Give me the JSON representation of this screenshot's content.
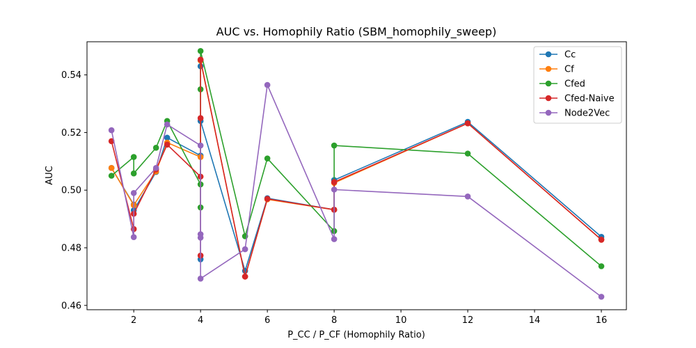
{
  "chart_data": {
    "type": "line",
    "title": "AUC vs. Homophily Ratio (SBM_homophily_sweep)",
    "xlabel": "P_CC / P_CF (Homophily Ratio)",
    "ylabel": "AUC",
    "xlim": [
      0.6,
      16.75
    ],
    "ylim": [
      0.4585,
      0.5515
    ],
    "xticks": [
      2,
      4,
      6,
      8,
      10,
      12,
      14,
      16
    ],
    "yticks": [
      0.46,
      0.48,
      0.5,
      0.52,
      0.54
    ],
    "ytick_labels": [
      "0.46",
      "0.48",
      "0.50",
      "0.52",
      "0.54"
    ],
    "grid": false,
    "legend_position": "top-right",
    "series": [
      {
        "name": "Cc",
        "color": "#1f77b4",
        "points": [
          [
            1.333,
            0.5077
          ],
          [
            2,
            0.495
          ],
          [
            2,
            0.493
          ],
          [
            2.667,
            0.5063
          ],
          [
            3,
            0.5182
          ],
          [
            4,
            0.512
          ],
          [
            4,
            0.476
          ],
          [
            4,
            0.543
          ],
          [
            4,
            0.545
          ],
          [
            4,
            0.524
          ],
          [
            5.333,
            0.472
          ],
          [
            6,
            0.4972
          ],
          [
            8,
            0.4932
          ],
          [
            8,
            0.5035
          ],
          [
            12,
            0.5237
          ],
          [
            16,
            0.4838
          ]
        ]
      },
      {
        "name": "Cf",
        "color": "#ff7f0e",
        "points": [
          [
            1.333,
            0.5077
          ],
          [
            2,
            0.4948
          ],
          [
            2.667,
            0.5065
          ],
          [
            3,
            0.5165
          ],
          [
            4,
            0.5115
          ],
          [
            4,
            0.545
          ],
          [
            5.333,
            0.47
          ],
          [
            6,
            0.4968
          ],
          [
            8,
            0.4932
          ],
          [
            8,
            0.5025
          ],
          [
            12,
            0.5232
          ],
          [
            16,
            0.4828
          ]
        ]
      },
      {
        "name": "Cfed",
        "color": "#2ca02c",
        "points": [
          [
            1.333,
            0.505
          ],
          [
            2,
            0.5115
          ],
          [
            2,
            0.5058
          ],
          [
            2.667,
            0.5147
          ],
          [
            3,
            0.524
          ],
          [
            4,
            0.502
          ],
          [
            4,
            0.494
          ],
          [
            4,
            0.535
          ],
          [
            4,
            0.5483
          ],
          [
            5.333,
            0.484
          ],
          [
            6,
            0.511
          ],
          [
            8,
            0.4858
          ],
          [
            8,
            0.5155
          ],
          [
            12,
            0.5127
          ],
          [
            16,
            0.4736
          ]
        ]
      },
      {
        "name": "Cfed-Naive",
        "color": "#d62728",
        "points": [
          [
            1.333,
            0.517
          ],
          [
            2,
            0.4865
          ],
          [
            2,
            0.4918
          ],
          [
            2.667,
            0.5072
          ],
          [
            3,
            0.5158
          ],
          [
            4,
            0.5047
          ],
          [
            4,
            0.4773
          ],
          [
            4,
            0.525
          ],
          [
            4,
            0.5453
          ],
          [
            5.333,
            0.47
          ],
          [
            6,
            0.497
          ],
          [
            8,
            0.4932
          ],
          [
            8,
            0.5028
          ],
          [
            12,
            0.5232
          ],
          [
            16,
            0.4828
          ]
        ]
      },
      {
        "name": "Node2Vec",
        "color": "#9467bd",
        "points": [
          [
            1.333,
            0.5208
          ],
          [
            2,
            0.4837
          ],
          [
            2,
            0.499
          ],
          [
            2.667,
            0.5077
          ],
          [
            3,
            0.5228
          ],
          [
            4,
            0.5155
          ],
          [
            4,
            0.4835
          ],
          [
            4,
            0.4847
          ],
          [
            4,
            0.4693
          ],
          [
            5.333,
            0.4795
          ],
          [
            6,
            0.5365
          ],
          [
            8,
            0.483
          ],
          [
            8,
            0.5002
          ],
          [
            12,
            0.4978
          ],
          [
            16,
            0.463
          ]
        ]
      }
    ]
  }
}
